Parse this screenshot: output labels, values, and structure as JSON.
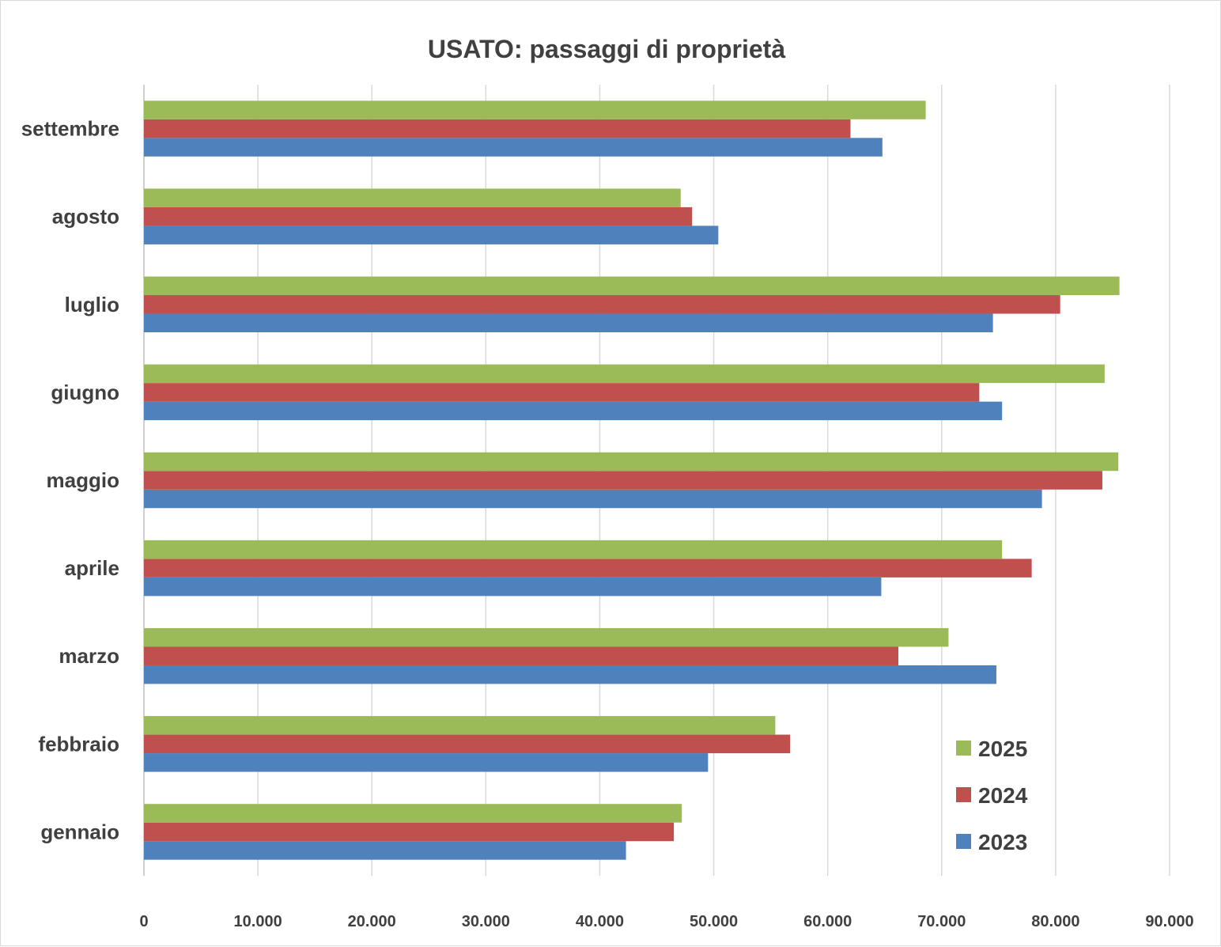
{
  "chart_data": {
    "type": "bar",
    "orientation": "horizontal",
    "title": "USATO: passaggi di proprietà",
    "categories": [
      "gennaio",
      "febbraio",
      "marzo",
      "aprile",
      "maggio",
      "giugno",
      "luglio",
      "agosto",
      "settembre"
    ],
    "series": [
      {
        "name": "2023",
        "color": "#4f81bd",
        "values": [
          42300,
          49500,
          74800,
          64700,
          78800,
          75300,
          74500,
          50400,
          64800
        ]
      },
      {
        "name": "2024",
        "color": "#c0504d",
        "values": [
          46500,
          56700,
          66200,
          77900,
          84100,
          73300,
          80400,
          48100,
          62000
        ]
      },
      {
        "name": "2025",
        "color": "#9bbb59",
        "values": [
          47200,
          55400,
          70600,
          75300,
          85500,
          84300,
          85600,
          47100,
          68600
        ]
      }
    ],
    "xlim": [
      0,
      90000
    ],
    "x_ticks": [
      "0",
      "10.000",
      "20.000",
      "30.000",
      "40.000",
      "50.000",
      "60.000",
      "70.000",
      "80.000",
      "90.000"
    ],
    "grid": "vertical",
    "legend": {
      "placement": "bottom-right",
      "order": [
        "2025",
        "2024",
        "2023"
      ]
    }
  }
}
